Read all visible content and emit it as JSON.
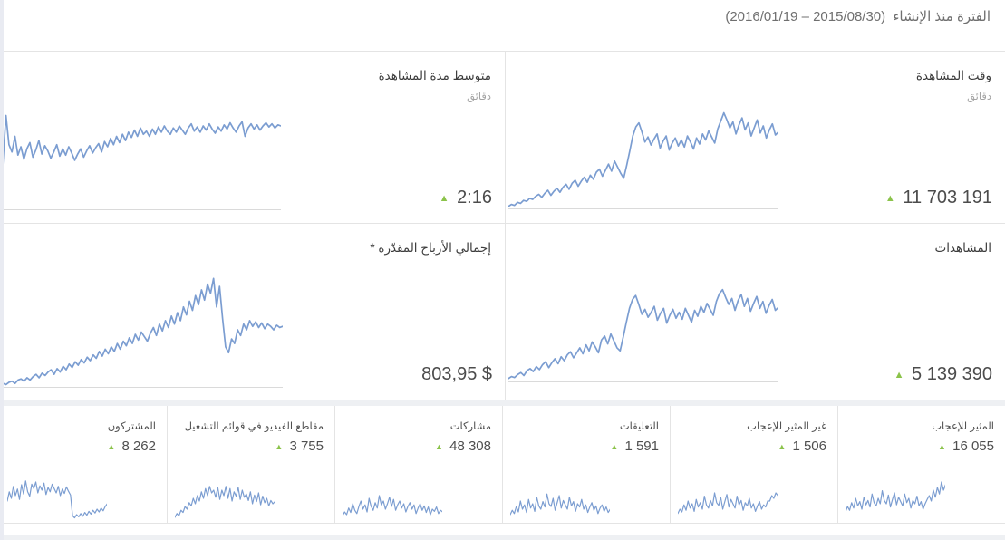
{
  "header": {
    "title": "الفترة منذ الإنشاء",
    "range": "(2016/01/19 – 2015/08/30)"
  },
  "icons": {
    "trend_up": "▲"
  },
  "colors": {
    "line": "#7b9dd1",
    "baseline": "#dadada",
    "arrow_green": "#8bc34a"
  },
  "big_cards": [
    {
      "id": "watch-time",
      "title": "وقت المشاهدة",
      "subtitle": "دقائق",
      "value": "11 703 191",
      "series": [
        2,
        4,
        3,
        6,
        5,
        8,
        7,
        10,
        9,
        12,
        14,
        11,
        15,
        18,
        13,
        17,
        20,
        16,
        21,
        24,
        19,
        25,
        28,
        22,
        27,
        31,
        26,
        33,
        29,
        36,
        39,
        32,
        38,
        44,
        37,
        47,
        41,
        35,
        30,
        43,
        57,
        72,
        81,
        85,
        76,
        66,
        71,
        63,
        69,
        74,
        60,
        67,
        72,
        58,
        65,
        70,
        62,
        68,
        61,
        72,
        66,
        59,
        70,
        64,
        74,
        68,
        77,
        71,
        65,
        79,
        87,
        95,
        88,
        80,
        86,
        74,
        83,
        90,
        78,
        85,
        72,
        80,
        88,
        75,
        82,
        70,
        78,
        84,
        73,
        76
      ]
    },
    {
      "id": "avg-view-duration",
      "title": "متوسط مدة المشاهدة",
      "subtitle": "دقائق",
      "value": "2:16",
      "series": [
        0,
        45,
        90,
        62,
        55,
        70,
        52,
        60,
        48,
        58,
        64,
        50,
        57,
        66,
        53,
        61,
        56,
        49,
        55,
        62,
        51,
        58,
        52,
        60,
        54,
        47,
        53,
        58,
        50,
        56,
        61,
        54,
        59,
        63,
        55,
        65,
        60,
        68,
        62,
        70,
        64,
        72,
        66,
        74,
        69,
        76,
        70,
        78,
        72,
        75,
        70,
        77,
        72,
        79,
        74,
        80,
        75,
        72,
        78,
        74,
        80,
        76,
        72,
        78,
        82,
        75,
        79,
        74,
        80,
        76,
        82,
        77,
        73,
        79,
        75,
        81,
        77,
        83,
        78,
        74,
        80,
        84,
        70,
        78,
        82,
        77,
        81,
        76,
        80,
        83,
        79,
        82,
        78,
        81,
        80
      ]
    },
    {
      "id": "views",
      "title": "المشاهدات",
      "value": "5 139 390",
      "series": [
        3,
        5,
        4,
        7,
        9,
        6,
        11,
        13,
        10,
        15,
        12,
        17,
        20,
        14,
        19,
        23,
        18,
        25,
        21,
        27,
        30,
        24,
        29,
        34,
        28,
        37,
        31,
        40,
        35,
        29,
        42,
        46,
        38,
        48,
        41,
        34,
        31,
        45,
        60,
        74,
        83,
        87,
        78,
        68,
        73,
        65,
        70,
        76,
        62,
        69,
        74,
        59,
        67,
        73,
        64,
        70,
        63,
        74,
        67,
        60,
        72,
        66,
        76,
        70,
        79,
        73,
        67,
        81,
        89,
        93,
        85,
        78,
        84,
        72,
        82,
        88,
        76,
        84,
        71,
        79,
        86,
        74,
        81,
        69,
        77,
        83,
        72,
        75
      ]
    },
    {
      "id": "estimated-revenue",
      "title": "إجمالي الأرباح المقدّرة *",
      "value": "803,95 $",
      "series": [
        2,
        3,
        2,
        4,
        5,
        3,
        6,
        7,
        5,
        8,
        6,
        9,
        11,
        8,
        12,
        10,
        13,
        15,
        11,
        16,
        13,
        18,
        15,
        20,
        17,
        22,
        19,
        24,
        21,
        26,
        23,
        28,
        25,
        31,
        27,
        33,
        29,
        35,
        31,
        38,
        33,
        40,
        36,
        43,
        38,
        46,
        41,
        48,
        44,
        40,
        47,
        52,
        45,
        55,
        49,
        58,
        52,
        62,
        55,
        65,
        58,
        70,
        63,
        75,
        67,
        80,
        72,
        85,
        76,
        90,
        82,
        95,
        70,
        88,
        60,
        35,
        30,
        42,
        38,
        50,
        45,
        55,
        50,
        58,
        53,
        57,
        52,
        56,
        51,
        55,
        53,
        50,
        54,
        52,
        53
      ]
    }
  ],
  "small_cards": [
    {
      "id": "likes",
      "label": "المثير للإعجاب",
      "value": "16 055",
      "series": [
        15,
        25,
        18,
        32,
        22,
        40,
        26,
        34,
        20,
        42,
        28,
        36,
        24,
        48,
        32,
        26,
        40,
        30,
        54,
        36,
        30,
        46,
        24,
        38,
        50,
        28,
        42,
        34,
        26,
        48,
        32,
        40,
        22,
        36,
        30,
        44,
        26,
        34,
        20,
        30,
        38,
        45,
        35,
        55,
        42,
        60,
        48,
        70,
        55,
        65
      ]
    },
    {
      "id": "dislikes",
      "label": "غير المثير للإعجاب",
      "value": "1 506",
      "series": [
        12,
        20,
        15,
        28,
        18,
        35,
        22,
        30,
        16,
        38,
        24,
        32,
        20,
        44,
        28,
        22,
        36,
        26,
        50,
        32,
        27,
        42,
        20,
        34,
        47,
        24,
        38,
        30,
        22,
        44,
        28,
        36,
        18,
        32,
        26,
        40,
        22,
        30,
        16,
        26,
        34,
        20,
        28,
        24,
        35,
        35,
        45,
        40,
        50,
        45
      ]
    },
    {
      "id": "comments",
      "label": "التعليقات",
      "value": "1 591",
      "series": [
        10,
        18,
        12,
        25,
        15,
        35,
        20,
        28,
        14,
        38,
        22,
        30,
        16,
        42,
        26,
        20,
        34,
        24,
        48,
        30,
        25,
        40,
        18,
        32,
        45,
        22,
        36,
        28,
        20,
        42,
        26,
        34,
        16,
        30,
        24,
        38,
        20,
        28,
        14,
        24,
        32,
        18,
        26,
        12,
        22,
        28,
        16,
        24,
        14,
        20
      ]
    },
    {
      "id": "shares",
      "label": "مشاركات",
      "value": "48 308",
      "series": [
        8,
        15,
        10,
        22,
        14,
        30,
        18,
        12,
        25,
        35,
        20,
        28,
        15,
        40,
        25,
        18,
        32,
        22,
        45,
        28,
        35,
        20,
        30,
        42,
        25,
        38,
        18,
        28,
        35,
        22,
        30,
        15,
        25,
        32,
        20,
        28,
        12,
        22,
        30,
        18,
        26,
        14,
        24,
        10,
        20,
        16,
        24,
        12,
        18,
        15
      ]
    },
    {
      "id": "videos-in-playlists",
      "label": "مقاطع الفيديو في قوائم التشغيل",
      "value": "3 755",
      "series": [
        5,
        12,
        8,
        18,
        14,
        25,
        20,
        32,
        26,
        40,
        30,
        45,
        35,
        52,
        40,
        58,
        45,
        62,
        50,
        55,
        42,
        60,
        38,
        55,
        45,
        62,
        40,
        58,
        35,
        52,
        44,
        60,
        38,
        55,
        42,
        48,
        36,
        52,
        30,
        46,
        34,
        50,
        28,
        44,
        32,
        40,
        26,
        36,
        30,
        34
      ]
    },
    {
      "id": "subscribers",
      "label": "المشتركون",
      "value": "8 262",
      "series": [
        35,
        52,
        40,
        62,
        45,
        57,
        38,
        65,
        48,
        72,
        52,
        44,
        66,
        58,
        70,
        50,
        63,
        55,
        68,
        47,
        60,
        52,
        66,
        58,
        50,
        62,
        45,
        57,
        49,
        61,
        53,
        46,
        8,
        4,
        10,
        6,
        12,
        7,
        14,
        9,
        16,
        11,
        18,
        13,
        20,
        15,
        22,
        17,
        25,
        30
      ]
    }
  ]
}
